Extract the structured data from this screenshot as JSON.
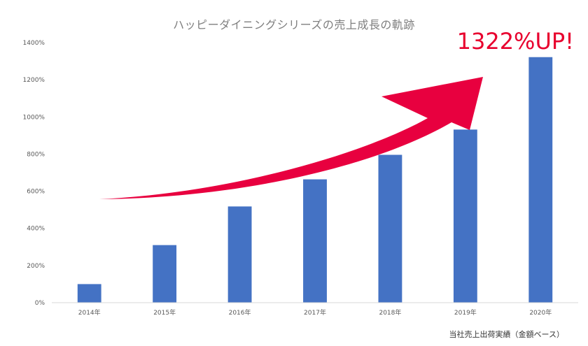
{
  "chart_data": {
    "type": "bar",
    "title": "ハッピーダイニングシリーズの売上成長の軌跡",
    "categories": [
      "2014年",
      "2015年",
      "2016年",
      "2017年",
      "2018年",
      "2019年",
      "2020年"
    ],
    "series": [
      {
        "values": [
          100,
          310,
          518,
          664,
          796,
          932,
          1322
        ]
      }
    ],
    "ylim": [
      0,
      1400
    ],
    "y_ticks": [
      "0%",
      "200%",
      "400%",
      "600%",
      "800%",
      "1000%",
      "1200%",
      "1400%"
    ],
    "xlabel": "",
    "ylabel": "",
    "grid": false,
    "annotation": "1322%UP!",
    "source_note": "当社売上出荷実績（金額ベース）",
    "colors": {
      "bar": "#4472c4",
      "arrow": "#e8003f",
      "axis": "#d9d9d9",
      "text": "#595959"
    }
  }
}
